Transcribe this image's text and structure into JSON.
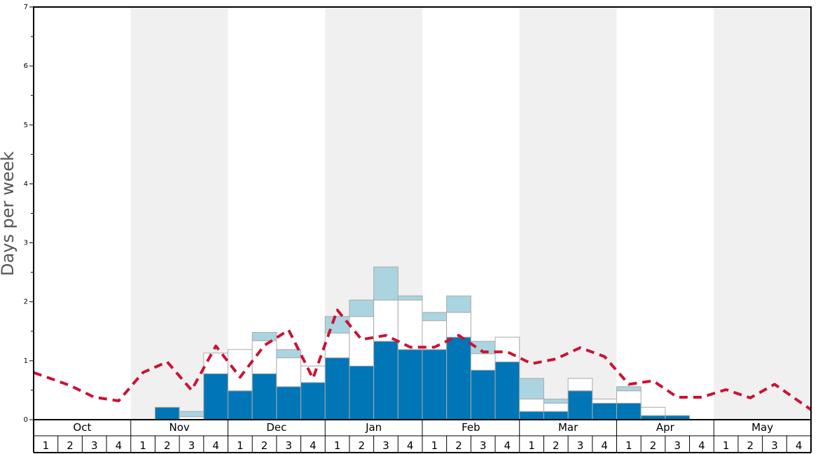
{
  "chart_data": {
    "type": "bar",
    "ylabel": "Days per week",
    "ylim": [
      0,
      7
    ],
    "yticks": [
      "0",
      "1",
      "2",
      "3",
      "4",
      "5",
      "6",
      "7"
    ],
    "months": [
      "Oct",
      "Nov",
      "Dec",
      "Jan",
      "Feb",
      "Mar",
      "Apr",
      "May"
    ],
    "weeks": [
      "1",
      "2",
      "3",
      "4"
    ],
    "colors": {
      "dark": "#0076b6",
      "white": "#ffffff",
      "light": "#aad4e0",
      "line": "#cc1133",
      "shade": "#f0f0f0",
      "border": "#aaaaaa"
    },
    "series": [
      {
        "key": "dark",
        "values": [
          0,
          0,
          0,
          0,
          0,
          0.21,
          0,
          0.78,
          0.49,
          0.78,
          0.56,
          0.63,
          1.05,
          0.91,
          1.33,
          1.19,
          1.19,
          1.4,
          0.84,
          0.98,
          0.14,
          0.14,
          0.49,
          0.28,
          0.28,
          0.07,
          0.07,
          0,
          0,
          0,
          0,
          0
        ]
      },
      {
        "key": "white",
        "values": [
          0,
          0,
          0,
          0,
          0,
          0,
          0.05,
          0.35,
          0.7,
          0.56,
          0.49,
          0.28,
          0.42,
          0.84,
          0.7,
          0.84,
          0.49,
          0.42,
          0.28,
          0.42,
          0.21,
          0.14,
          0.21,
          0.07,
          0.21,
          0.14,
          0,
          0,
          0,
          0,
          0,
          0
        ]
      },
      {
        "key": "light",
        "values": [
          0,
          0,
          0,
          0,
          0,
          0,
          0.09,
          0,
          0,
          0.14,
          0.14,
          0,
          0.28,
          0.28,
          0.56,
          0.07,
          0.14,
          0.28,
          0.21,
          0,
          0.35,
          0.07,
          0,
          0,
          0.07,
          0,
          0,
          0,
          0,
          0,
          0,
          0
        ]
      },
      {
        "key": "line",
        "values": [
          0.8,
          0.58,
          0.38,
          0.32,
          0.8,
          0.98,
          0.5,
          1.25,
          0.72,
          1.26,
          1.52,
          0.7,
          1.86,
          1.36,
          1.43,
          1.23,
          1.23,
          1.43,
          1.15,
          1.15,
          0.95,
          1.03,
          1.22,
          1.07,
          0.6,
          0.66,
          0.38,
          0.38,
          0.51,
          0.37,
          0.6,
          0.17
        ]
      }
    ]
  }
}
